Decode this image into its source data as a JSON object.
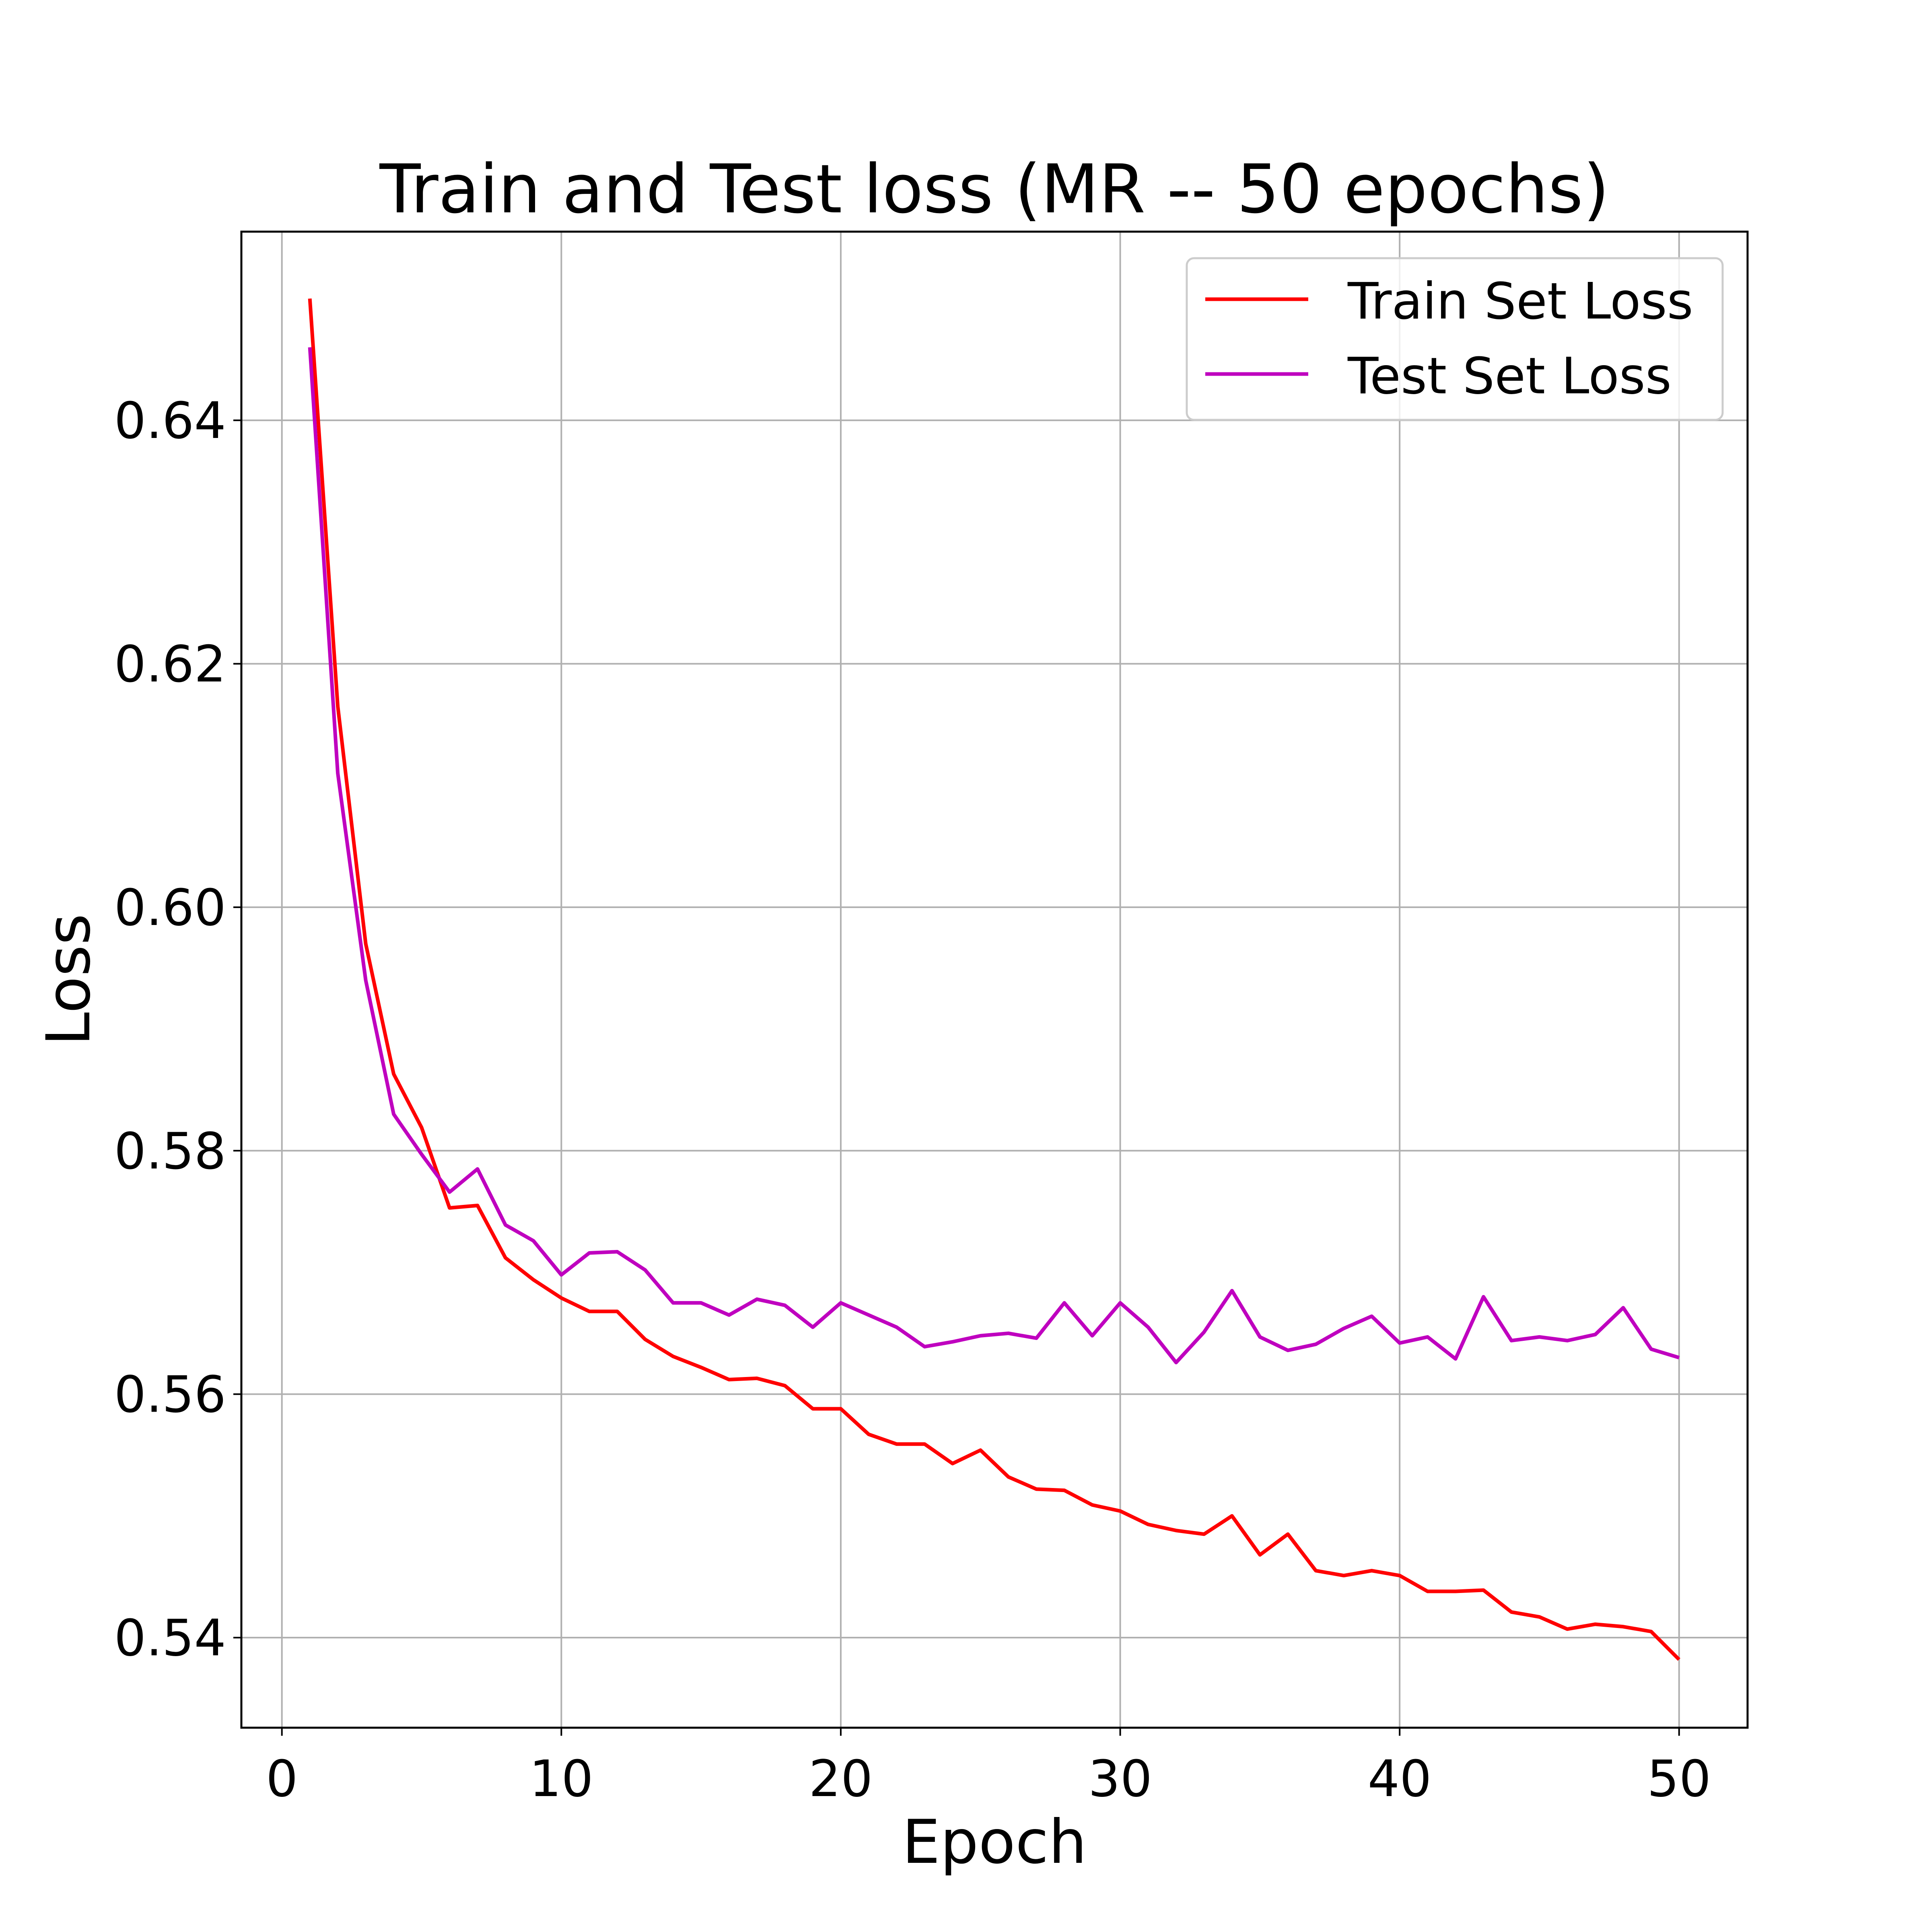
{
  "chart_data": {
    "type": "line",
    "title": "Train and Test loss (MR -- 50 epochs)",
    "xlabel": "Epoch",
    "ylabel": "Loss",
    "xlim": [
      -1.45,
      52.45
    ],
    "ylim": [
      0.5326,
      0.6555
    ],
    "xticks": [
      0,
      10,
      20,
      30,
      40,
      50
    ],
    "yticks": [
      0.54,
      0.56,
      0.58,
      0.6,
      0.62,
      0.64
    ],
    "xtick_labels": [
      "0",
      "10",
      "20",
      "30",
      "40",
      "50"
    ],
    "ytick_labels": [
      "0.54",
      "0.56",
      "0.58",
      "0.60",
      "0.62",
      "0.64"
    ],
    "grid": true,
    "legend_position": "top-right",
    "x": [
      1,
      2,
      3,
      4,
      5,
      6,
      7,
      8,
      9,
      10,
      11,
      12,
      13,
      14,
      15,
      16,
      17,
      18,
      19,
      20,
      21,
      22,
      23,
      24,
      25,
      26,
      27,
      28,
      29,
      30,
      31,
      32,
      33,
      34,
      35,
      36,
      37,
      38,
      39,
      40,
      41,
      42,
      43,
      44,
      45,
      46,
      47,
      48,
      49,
      50
    ],
    "series": [
      {
        "name": "Train Set Loss",
        "color": "#ff0000",
        "values": [
          0.65,
          0.6165,
          0.597,
          0.5863,
          0.5819,
          0.5753,
          0.5755,
          0.5712,
          0.5694,
          0.5679,
          0.5668,
          0.5668,
          0.5645,
          0.5631,
          0.5622,
          0.5612,
          0.5613,
          0.5607,
          0.5588,
          0.5588,
          0.5567,
          0.5559,
          0.5559,
          0.5543,
          0.5554,
          0.5532,
          0.5522,
          0.5521,
          0.5509,
          0.5504,
          0.5493,
          0.5488,
          0.5485,
          0.55,
          0.5468,
          0.5485,
          0.5455,
          0.5451,
          0.5455,
          0.5451,
          0.5438,
          0.5438,
          0.5439,
          0.5421,
          0.5417,
          0.5407,
          0.5411,
          0.5409,
          0.5405,
          0.5382
        ]
      },
      {
        "name": "Test Set Loss",
        "color": "#bf00bf",
        "values": [
          0.646,
          0.611,
          0.594,
          0.583,
          0.5797,
          0.5766,
          0.5785,
          0.5739,
          0.5726,
          0.5698,
          0.5716,
          0.5717,
          0.5702,
          0.5675,
          0.5675,
          0.5665,
          0.5678,
          0.5673,
          0.5655,
          0.5675,
          0.5665,
          0.5655,
          0.5639,
          0.5643,
          0.5648,
          0.565,
          0.5646,
          0.5675,
          0.5648,
          0.5675,
          0.5655,
          0.5626,
          0.5651,
          0.5685,
          0.5647,
          0.5636,
          0.5641,
          0.5654,
          0.5664,
          0.5642,
          0.5647,
          0.5629,
          0.568,
          0.5644,
          0.5647,
          0.5644,
          0.5649,
          0.5671,
          0.5637,
          0.563
        ]
      }
    ]
  }
}
